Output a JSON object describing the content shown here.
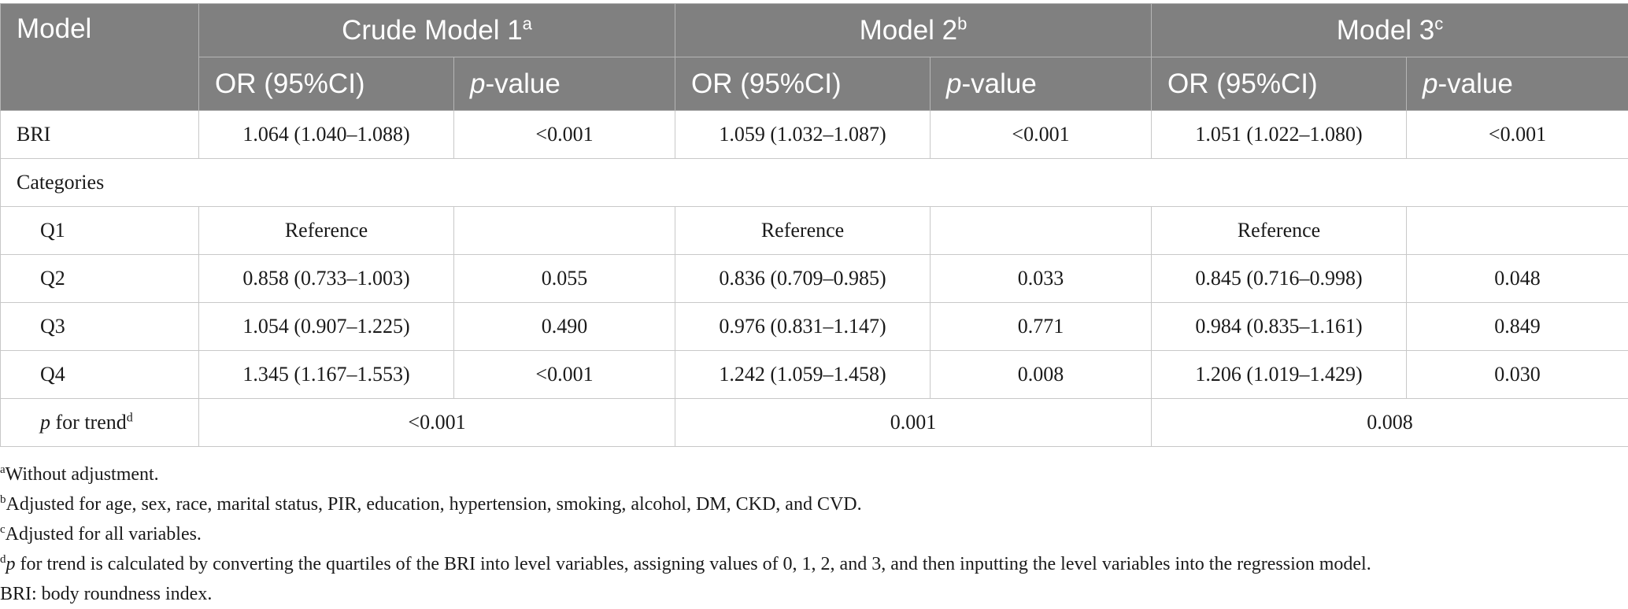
{
  "header": {
    "model_label": "Model",
    "groups": [
      {
        "name": "Crude Model 1",
        "sup": "a"
      },
      {
        "name": "Model 2",
        "sup": "b"
      },
      {
        "name": "Model 3",
        "sup": "c"
      }
    ],
    "or_label": "OR (95%CI)",
    "p_prefix": "p",
    "p_suffix": "-value"
  },
  "rows": {
    "bri": {
      "label": "BRI",
      "m1_or": "1.064 (1.040–1.088)",
      "m1_p": "<0.001",
      "m2_or": "1.059 (1.032–1.087)",
      "m2_p": "<0.001",
      "m3_or": "1.051 (1.022–1.080)",
      "m3_p": "<0.001"
    },
    "categories_label": "Categories",
    "q1": {
      "label": "Q1",
      "m1_or": "Reference",
      "m1_p": "",
      "m2_or": "Reference",
      "m2_p": "",
      "m3_or": "Reference",
      "m3_p": ""
    },
    "q2": {
      "label": "Q2",
      "m1_or": "0.858 (0.733–1.003)",
      "m1_p": "0.055",
      "m2_or": "0.836 (0.709–0.985)",
      "m2_p": "0.033",
      "m3_or": "0.845 (0.716–0.998)",
      "m3_p": "0.048"
    },
    "q3": {
      "label": "Q3",
      "m1_or": "1.054 (0.907–1.225)",
      "m1_p": "0.490",
      "m2_or": "0.976 (0.831–1.147)",
      "m2_p": "0.771",
      "m3_or": "0.984 (0.835–1.161)",
      "m3_p": "0.849"
    },
    "q4": {
      "label": "Q4",
      "m1_or": "1.345 (1.167–1.553)",
      "m1_p": "<0.001",
      "m2_or": "1.242 (1.059–1.458)",
      "m2_p": "0.008",
      "m3_or": "1.206 (1.019–1.429)",
      "m3_p": "0.030"
    },
    "trend": {
      "label_p": "p",
      "label_rest": " for trend",
      "sup": "d",
      "m1": "<0.001",
      "m2": "0.001",
      "m3": "0.008"
    }
  },
  "footnotes": {
    "a": {
      "mark": "a",
      "text": "Without adjustment."
    },
    "b": {
      "mark": "b",
      "text": "Adjusted for age, sex, race, marital status, PIR, education, hypertension, smoking, alcohol, DM, CKD, and CVD."
    },
    "c": {
      "mark": "c",
      "text": "Adjusted for all variables."
    },
    "d": {
      "mark": "d",
      "italic_lead": "p",
      "text": " for trend is calculated by converting the quartiles of the BRI into level variables, assigning values of 0, 1, 2, and 3, and then inputting the level variables into the regression model."
    },
    "abbr": "BRI: body roundness index."
  }
}
